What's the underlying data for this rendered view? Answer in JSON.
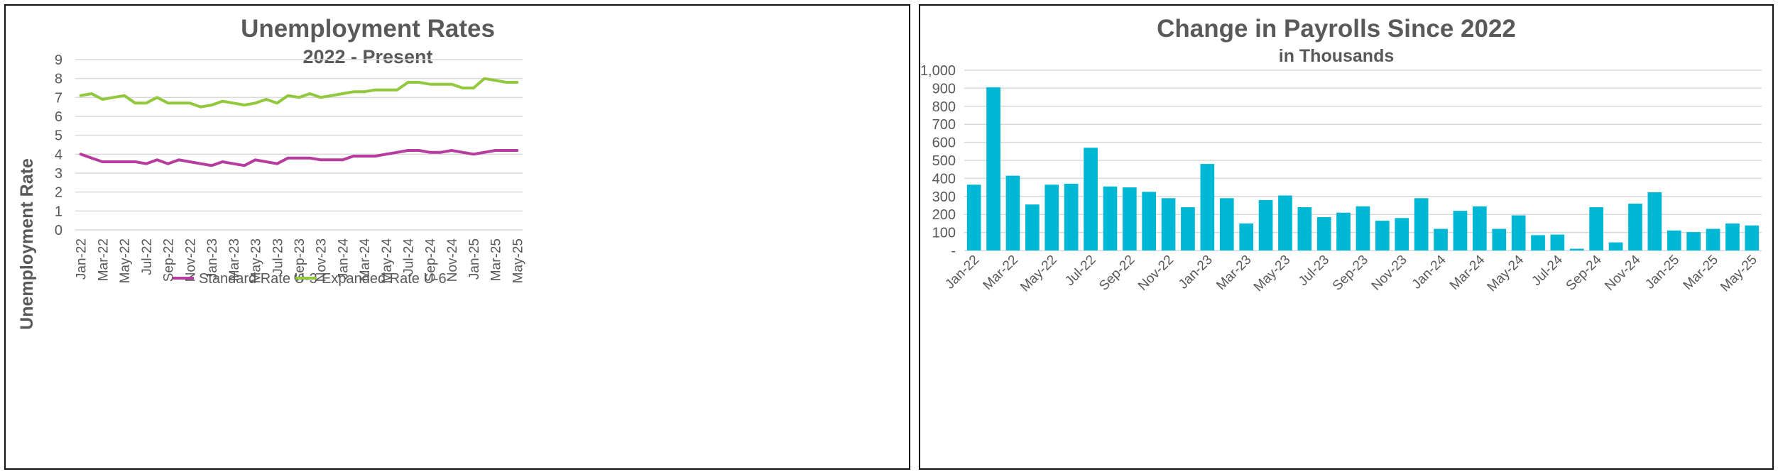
{
  "chart_data": [
    {
      "type": "line",
      "title": "Unemployment Rates",
      "subtitle": "2022 - Present",
      "xlabel": "",
      "ylabel": "Unemployment Rate",
      "ylim": [
        0,
        9
      ],
      "yticks": [
        "0",
        "1",
        "2",
        "3",
        "4",
        "5",
        "6",
        "7",
        "8",
        "9"
      ],
      "grid": true,
      "legend_position": "bottom",
      "x": [
        "Jan-22",
        "Feb-22",
        "Mar-22",
        "Apr-22",
        "May-22",
        "Jun-22",
        "Jul-22",
        "Aug-22",
        "Sep-22",
        "Oct-22",
        "Nov-22",
        "Dec-22",
        "Jan-23",
        "Feb-23",
        "Mar-23",
        "Apr-23",
        "May-23",
        "Jun-23",
        "Jul-23",
        "Aug-23",
        "Sep-23",
        "Oct-23",
        "Nov-23",
        "Dec-23",
        "Jan-24",
        "Feb-24",
        "Mar-24",
        "Apr-24",
        "May-24",
        "Jun-24",
        "Jul-24",
        "Aug-24",
        "Sep-24",
        "Oct-24",
        "Nov-24",
        "Dec-24",
        "Jan-25",
        "Feb-25",
        "Mar-25",
        "Apr-25",
        "May-25"
      ],
      "x_tick_labels": [
        "Jan-22",
        "Mar-22",
        "May-22",
        "Jul-22",
        "Sep-22",
        "Nov-22",
        "Jan-23",
        "Mar-23",
        "May-23",
        "Jul-23",
        "Sep-23",
        "Nov-23",
        "Jan-24",
        "Mar-24",
        "May-24",
        "Jul-24",
        "Sep-24",
        "Nov-24",
        "Jan-25",
        "Mar-25",
        "May-25"
      ],
      "series": [
        {
          "name": "Standard Rate U-3",
          "color": "#B63C9E",
          "values": [
            4.0,
            3.8,
            3.6,
            3.6,
            3.6,
            3.6,
            3.5,
            3.7,
            3.5,
            3.7,
            3.6,
            3.5,
            3.4,
            3.6,
            3.5,
            3.4,
            3.7,
            3.6,
            3.5,
            3.8,
            3.8,
            3.8,
            3.7,
            3.7,
            3.7,
            3.9,
            3.9,
            3.9,
            4.0,
            4.1,
            4.2,
            4.2,
            4.1,
            4.1,
            4.2,
            4.1,
            4.0,
            4.1,
            4.2,
            4.2,
            4.2
          ]
        },
        {
          "name": "Expanded Rate U-6",
          "color": "#92C83E",
          "values": [
            7.1,
            7.2,
            6.9,
            7.0,
            7.1,
            6.7,
            6.7,
            7.0,
            6.7,
            6.7,
            6.7,
            6.5,
            6.6,
            6.8,
            6.7,
            6.6,
            6.7,
            6.9,
            6.7,
            7.1,
            7.0,
            7.2,
            7.0,
            7.1,
            7.2,
            7.3,
            7.3,
            7.4,
            7.4,
            7.4,
            7.8,
            7.8,
            7.7,
            7.7,
            7.7,
            7.5,
            7.5,
            8.0,
            7.9,
            7.8,
            7.8
          ]
        }
      ]
    },
    {
      "type": "bar",
      "title": "Change in Payrolls Since 2022",
      "subtitle": "in Thousands",
      "xlabel": "",
      "ylabel": "",
      "ylim": [
        0,
        1000
      ],
      "yticks": [
        "-",
        "100",
        "200",
        "300",
        "400",
        "500",
        "600",
        "700",
        "800",
        "900",
        "1,000"
      ],
      "grid": true,
      "color": "#00B8D4",
      "categories": [
        "Jan-22",
        "Feb-22",
        "Mar-22",
        "Apr-22",
        "May-22",
        "Jun-22",
        "Jul-22",
        "Aug-22",
        "Sep-22",
        "Oct-22",
        "Nov-22",
        "Dec-22",
        "Jan-23",
        "Feb-23",
        "Mar-23",
        "Apr-23",
        "May-23",
        "Jun-23",
        "Jul-23",
        "Aug-23",
        "Sep-23",
        "Oct-23",
        "Nov-23",
        "Dec-23",
        "Jan-24",
        "Feb-24",
        "Mar-24",
        "Apr-24",
        "May-24",
        "Jun-24",
        "Jul-24",
        "Aug-24",
        "Sep-24",
        "Oct-24",
        "Nov-24",
        "Dec-24",
        "Jan-25",
        "Feb-25",
        "Mar-25",
        "Apr-25",
        "May-25"
      ],
      "x_tick_labels": [
        "Jan-22",
        "Mar-22",
        "May-22",
        "Jul-22",
        "Sep-22",
        "Nov-22",
        "Jan-23",
        "Mar-23",
        "May-23",
        "Jul-23",
        "Sep-23",
        "Nov-23",
        "Jan-24",
        "Mar-24",
        "May-24",
        "Jul-24",
        "Sep-24",
        "Nov-24",
        "Jan-25",
        "Mar-25",
        "May-25"
      ],
      "values": [
        365,
        905,
        415,
        255,
        365,
        370,
        570,
        355,
        350,
        325,
        290,
        240,
        480,
        290,
        150,
        280,
        305,
        240,
        185,
        210,
        245,
        165,
        180,
        290,
        120,
        220,
        245,
        120,
        195,
        85,
        88,
        10,
        240,
        45,
        260,
        323,
        111,
        102,
        120,
        150,
        139
      ]
    }
  ]
}
